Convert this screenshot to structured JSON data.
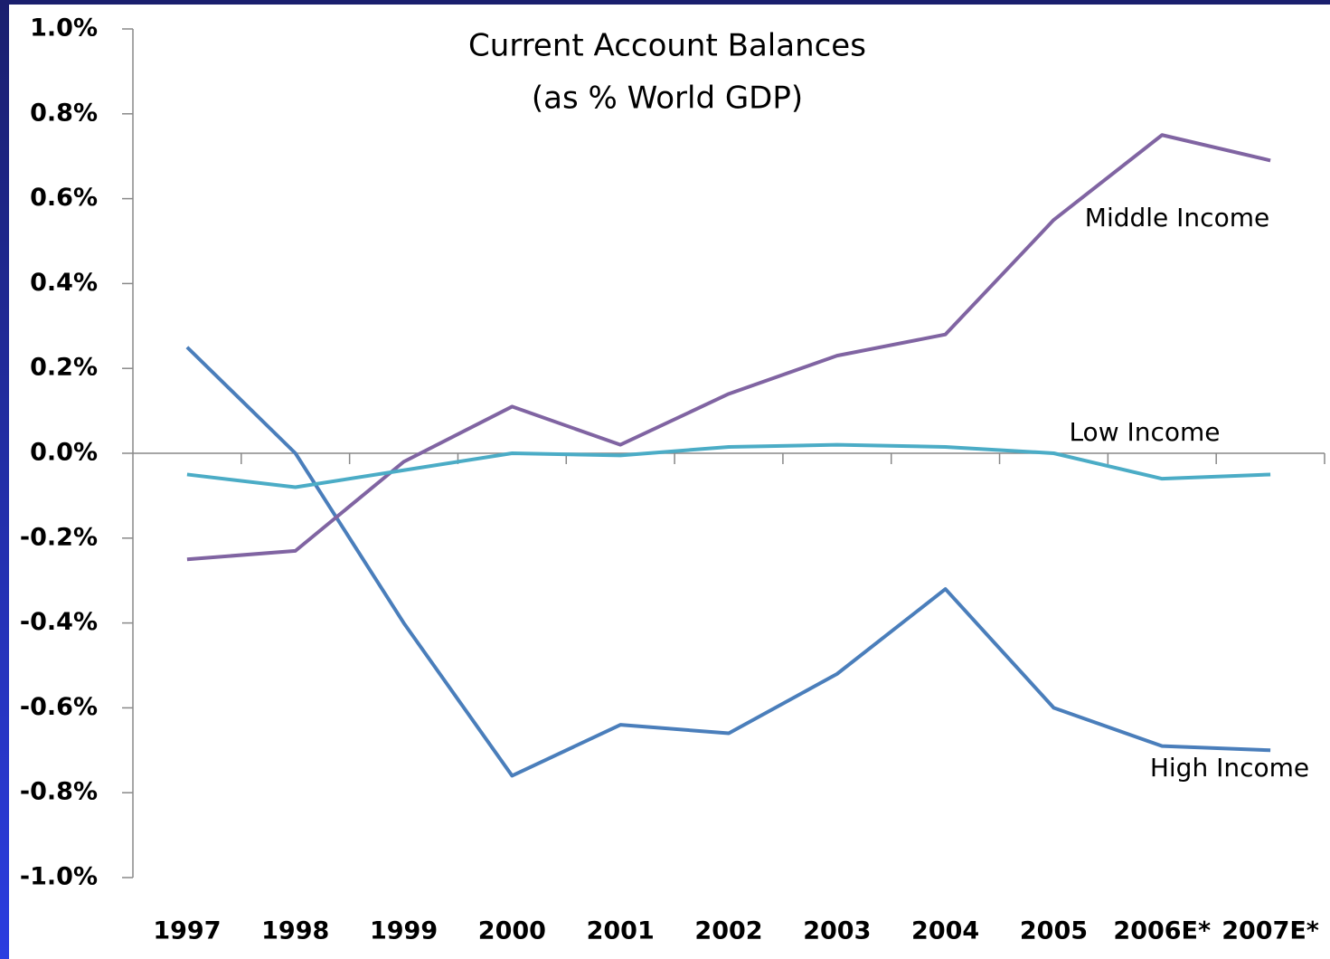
{
  "chart_data": {
    "type": "line",
    "title": "Current Account Balances",
    "subtitle": "(as % World GDP)",
    "categories": [
      "1997",
      "1998",
      "1999",
      "2000",
      "2001",
      "2002",
      "2003",
      "2004",
      "2005",
      "2006E*",
      "2007E*"
    ],
    "series": [
      {
        "name": "High Income",
        "color": "#4a7ebb",
        "values": [
          0.25,
          0.0,
          -0.4,
          -0.76,
          -0.64,
          -0.66,
          -0.52,
          -0.32,
          -0.6,
          -0.69,
          -0.7
        ]
      },
      {
        "name": "Middle Income",
        "color": "#8064a2",
        "values": [
          -0.25,
          -0.23,
          -0.02,
          0.11,
          0.02,
          0.14,
          0.23,
          0.28,
          0.55,
          0.75,
          0.69
        ]
      },
      {
        "name": "Low Income",
        "color": "#4bacc6",
        "values": [
          -0.05,
          -0.08,
          -0.04,
          0.0,
          -0.005,
          0.015,
          0.02,
          0.015,
          0.0,
          -0.06,
          -0.05
        ]
      }
    ],
    "ylim": [
      -1.0,
      1.0
    ],
    "yticks": [
      {
        "value": -1.0,
        "label": "-1.0%"
      },
      {
        "value": -0.8,
        "label": "-0.8%"
      },
      {
        "value": -0.6,
        "label": "-0.6%"
      },
      {
        "value": -0.4,
        "label": "-0.4%"
      },
      {
        "value": -0.2,
        "label": "-0.2%"
      },
      {
        "value": 0.0,
        "label": "0.0%"
      },
      {
        "value": 0.2,
        "label": "0.2%"
      },
      {
        "value": 0.4,
        "label": "0.4%"
      },
      {
        "value": 0.6,
        "label": "0.6%"
      },
      {
        "value": 0.8,
        "label": "0.8%"
      },
      {
        "value": 1.0,
        "label": "1.0%"
      }
    ],
    "grid": false
  }
}
